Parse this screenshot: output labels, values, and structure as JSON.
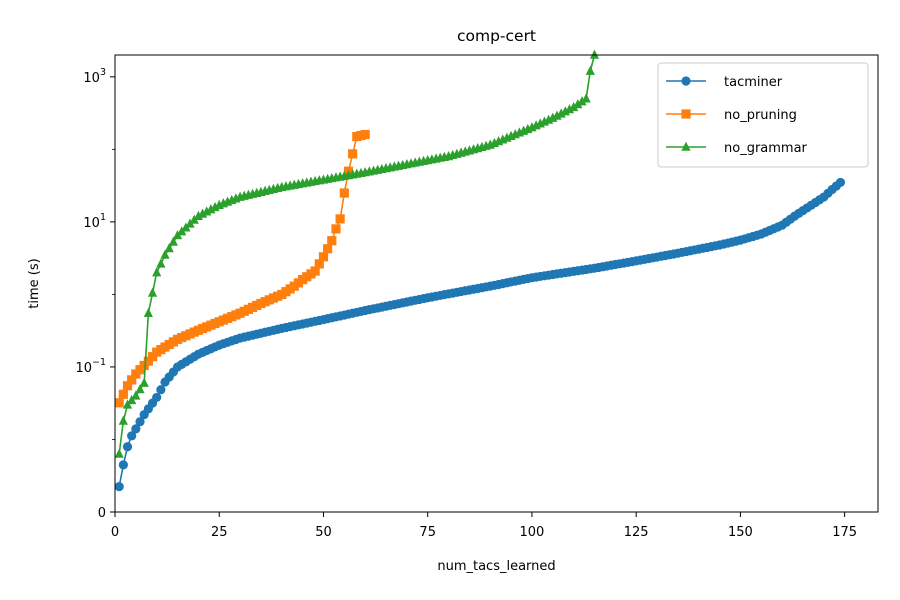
{
  "chart_data": {
    "type": "line",
    "title": "comp-cert",
    "xlabel": "num_tacs_learned",
    "ylabel": "time (s)",
    "xlim": [
      0,
      183
    ],
    "ylim": [
      0,
      2000
    ],
    "yscale": "symlog",
    "symlog_linthresh": 0.01,
    "x_ticks": [
      0,
      25,
      50,
      75,
      100,
      125,
      150,
      175
    ],
    "x_tick_labels": [
      "0",
      "25",
      "50",
      "75",
      "100",
      "125",
      "150",
      "175"
    ],
    "y_ticks": [
      0,
      0.1,
      10,
      1000
    ],
    "y_tick_labels": [
      {
        "base": "0",
        "exp": ""
      },
      {
        "base": "10",
        "exp": "−1"
      },
      {
        "base": "10",
        "exp": "1"
      },
      {
        "base": "10",
        "exp": "3"
      }
    ],
    "grid": false,
    "legend_position": "top-right",
    "series": [
      {
        "name": "tacminer",
        "color": "#1f77b4",
        "marker": "circle",
        "x": [
          1,
          2,
          3,
          5,
          7,
          10,
          12,
          15,
          20,
          25,
          30,
          40,
          50,
          60,
          75,
          90,
          100,
          115,
          125,
          135,
          145,
          150,
          155,
          160,
          163,
          167,
          170,
          172,
          174
        ],
        "y": [
          0.0035,
          0.0065,
          0.009,
          0.014,
          0.022,
          0.038,
          0.062,
          0.1,
          0.15,
          0.2,
          0.25,
          0.34,
          0.45,
          0.6,
          0.9,
          1.3,
          1.7,
          2.3,
          2.9,
          3.7,
          4.8,
          5.6,
          6.8,
          9.0,
          12,
          17,
          22,
          28,
          35
        ]
      },
      {
        "name": "no_pruning",
        "color": "#ff7f0e",
        "marker": "square",
        "x": [
          1,
          2,
          3,
          5,
          8,
          10,
          15,
          20,
          25,
          30,
          35,
          40,
          43,
          45,
          48,
          50,
          52,
          53,
          54,
          55,
          56,
          58,
          60
        ],
        "y": [
          0.032,
          0.042,
          0.055,
          0.08,
          0.12,
          0.16,
          0.24,
          0.32,
          0.42,
          0.55,
          0.75,
          1.0,
          1.3,
          1.6,
          2.1,
          3.3,
          5.5,
          8,
          11,
          25,
          50,
          150,
          160
        ]
      },
      {
        "name": "no_grammar",
        "color": "#2ca02c",
        "marker": "triangle",
        "x": [
          1,
          2,
          3,
          5,
          7,
          8,
          10,
          12,
          15,
          20,
          25,
          30,
          40,
          50,
          60,
          70,
          80,
          90,
          100,
          105,
          110,
          113,
          114,
          115
        ],
        "y": [
          0.008,
          0.018,
          0.03,
          0.04,
          0.06,
          0.55,
          2.0,
          3.5,
          6.5,
          12,
          17,
          22,
          30,
          38,
          48,
          62,
          80,
          115,
          200,
          270,
          380,
          500,
          1200,
          2000
        ]
      }
    ]
  }
}
